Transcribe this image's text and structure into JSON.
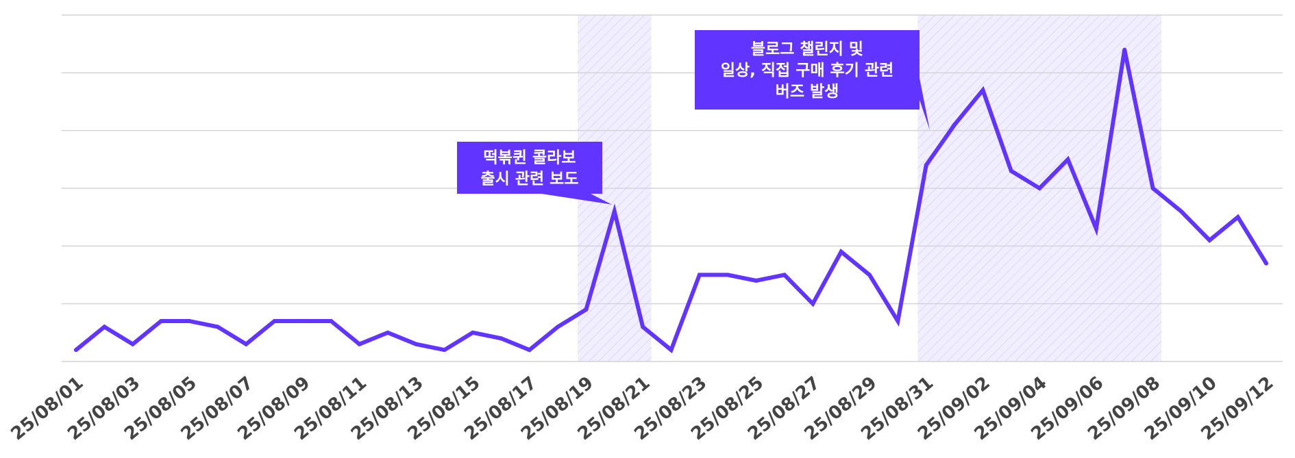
{
  "chart_data": {
    "type": "line",
    "title": "",
    "xlabel": "",
    "ylabel": "",
    "ylim": [
      0,
      60
    ],
    "grid": true,
    "y_ticks": [
      0,
      10,
      20,
      30,
      40,
      50,
      60
    ],
    "x": [
      "25/08/01",
      "25/08/02",
      "25/08/03",
      "25/08/04",
      "25/08/05",
      "25/08/06",
      "25/08/07",
      "25/08/08",
      "25/08/09",
      "25/08/10",
      "25/08/11",
      "25/08/12",
      "25/08/13",
      "25/08/14",
      "25/08/15",
      "25/08/16",
      "25/08/17",
      "25/08/18",
      "25/08/19",
      "25/08/20",
      "25/08/21",
      "25/08/22",
      "25/08/23",
      "25/08/24",
      "25/08/25",
      "25/08/26",
      "25/08/27",
      "25/08/28",
      "25/08/29",
      "25/08/30",
      "25/08/31",
      "25/09/01",
      "25/09/02",
      "25/09/03",
      "25/09/04",
      "25/09/05",
      "25/09/06",
      "25/09/07",
      "25/09/08",
      "25/09/09",
      "25/09/10",
      "25/09/11",
      "25/09/12"
    ],
    "x_tick_labels": [
      "25/08/01",
      "25/08/03",
      "25/08/05",
      "25/08/07",
      "25/08/09",
      "25/08/11",
      "25/08/13",
      "25/08/15",
      "25/08/17",
      "25/08/19",
      "25/08/21",
      "25/08/23",
      "25/08/25",
      "25/08/27",
      "25/08/29",
      "25/08/31",
      "25/09/02",
      "25/09/04",
      "25/09/06",
      "25/09/08",
      "25/09/10",
      "25/09/12"
    ],
    "series": [
      {
        "name": "",
        "color": "#6234ff",
        "values": [
          2,
          6,
          3,
          7,
          7,
          6,
          3,
          7,
          7,
          7,
          3,
          5,
          3,
          2,
          5,
          4,
          2,
          6,
          9,
          26,
          6,
          2,
          15,
          15,
          14,
          15,
          10,
          19,
          15,
          7,
          34,
          41,
          47,
          33,
          30,
          35,
          23,
          54,
          30,
          26,
          21,
          25,
          17
        ]
      }
    ],
    "highlight_ranges": [
      {
        "start": "25/08/19",
        "end": "25/08/21",
        "color": "#e8e4ff"
      },
      {
        "start": "25/08/31",
        "end": "25/09/08",
        "color": "#e8e4ff"
      }
    ],
    "annotations": [
      {
        "lines": [
          "떡볶퀸 콜라보",
          "출시 관련 보도"
        ],
        "target": "25/08/20",
        "color": "#6234ff"
      },
      {
        "lines": [
          "블로그 챌린지 및",
          "일상, 직접 구매 후기 관련",
          "버즈 발생"
        ],
        "target": "25/09/01",
        "color": "#6234ff"
      }
    ]
  }
}
